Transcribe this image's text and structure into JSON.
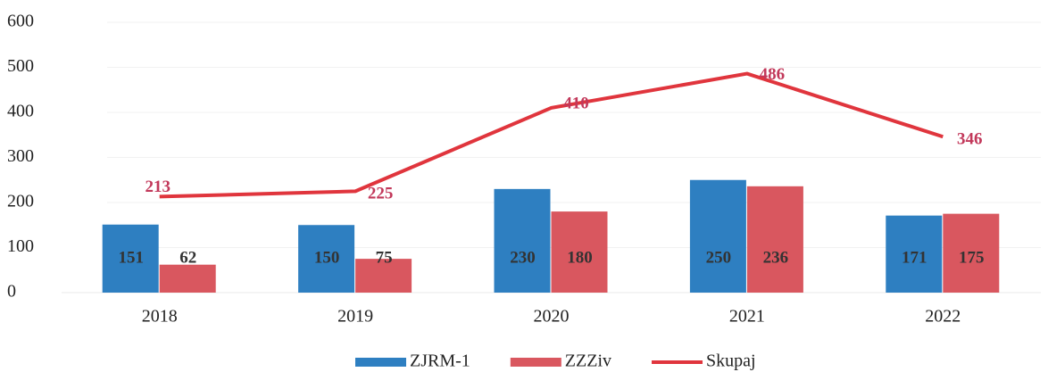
{
  "chart_data": {
    "type": "bar",
    "categories": [
      "2018",
      "2019",
      "2020",
      "2021",
      "2022"
    ],
    "series": [
      {
        "name": "ZJRM-1",
        "type": "bar",
        "color": "#2e7fc1",
        "values": [
          151,
          150,
          230,
          250,
          171
        ]
      },
      {
        "name": "ZZZiv",
        "type": "bar",
        "color": "#d9575f",
        "values": [
          62,
          75,
          180,
          236,
          175
        ]
      },
      {
        "name": "Skupaj",
        "type": "line",
        "color": "#e0353d",
        "label_color": "#c2385a",
        "values": [
          213,
          225,
          410,
          486,
          346
        ]
      }
    ],
    "ylim": [
      0,
      600
    ],
    "yticks": [
      0,
      100,
      200,
      300,
      400,
      500,
      600
    ],
    "grid": true,
    "legend": "bottom"
  }
}
